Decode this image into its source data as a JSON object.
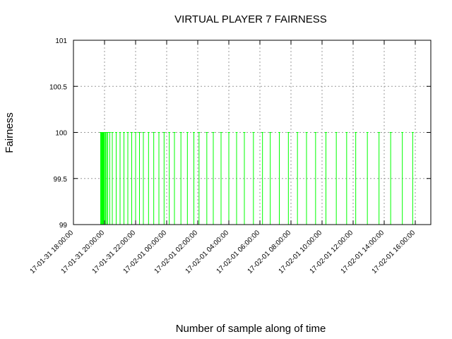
{
  "chart_data": {
    "type": "bar",
    "title": "VIRTUAL PLAYER 7 FAIRNESS",
    "xlabel": "Number of sample along of time",
    "ylabel": "Fairness",
    "ylim": [
      99,
      101
    ],
    "xlim": [
      "17-01-31 18:00:00",
      "17-02-01 17:00:00"
    ],
    "yticks": [
      "99",
      "99.5",
      "100",
      "100.5",
      "101"
    ],
    "xticks": [
      "17-01-31 18:00:00",
      "17-01-31 20:00:00",
      "17-01-31 22:00:00",
      "17-02-01 00:00:00",
      "17-02-01 02:00:00",
      "17-02-01 04:00:00",
      "17-02-01 06:00:00",
      "17-02-01 08:00:00",
      "17-02-01 10:00:00",
      "17-02-01 12:00:00",
      "17-02-01 14:00:00",
      "17-02-01 16:00:00"
    ],
    "grid": true,
    "legend": "none",
    "color": "#00ff00",
    "series": [
      {
        "x": [
          "17-01-31 19:45:00",
          "17-01-31 19:46:00",
          "17-01-31 19:47:00",
          "17-01-31 19:48:00",
          "17-01-31 19:49:00",
          "17-01-31 19:50:00",
          "17-01-31 19:51:00",
          "17-01-31 19:52:00",
          "17-01-31 19:53:00",
          "17-01-31 19:54:00",
          "17-01-31 19:55:00",
          "17-01-31 19:56:00",
          "17-01-31 19:58:00",
          "17-01-31 20:00:00",
          "17-01-31 20:04:00",
          "17-01-31 20:08:00",
          "17-01-31 20:12:00",
          "17-01-31 20:20:00",
          "17-01-31 20:30:00",
          "17-01-31 20:45:00",
          "17-01-31 21:00:00",
          "17-01-31 21:15:00",
          "17-01-31 21:30:00",
          "17-01-31 21:45:00",
          "17-01-31 22:00:00",
          "17-01-31 22:15:00",
          "17-01-31 22:30:00",
          "17-01-31 22:50:00",
          "17-01-31 23:10:00",
          "17-01-31 23:30:00",
          "17-01-31 23:50:00",
          "17-02-01 00:10:00",
          "17-02-01 00:30:00",
          "17-02-01 00:55:00",
          "17-02-01 01:20:00",
          "17-02-01 01:45:00",
          "17-02-01 02:05:00",
          "17-02-01 02:35:00",
          "17-02-01 03:00:00",
          "17-02-01 03:30:00",
          "17-02-01 04:00:00",
          "17-02-01 04:30:00",
          "17-02-01 05:00:00",
          "17-02-01 05:35:00",
          "17-02-01 06:10:00",
          "17-02-01 06:40:00",
          "17-02-01 07:15:00",
          "17-02-01 07:50:00",
          "17-02-01 08:25:00",
          "17-02-01 09:00:00",
          "17-02-01 09:35:00",
          "17-02-01 10:15:00",
          "17-02-01 10:55:00",
          "17-02-01 11:35:00",
          "17-02-01 12:10:00",
          "17-02-01 12:55:00",
          "17-02-01 13:40:00",
          "17-02-01 14:25:00",
          "17-02-01 15:10:00",
          "17-02-01 15:50:00"
        ],
        "values": [
          100,
          100,
          100,
          100,
          100,
          100,
          100,
          100,
          100,
          100,
          100,
          100,
          100,
          100,
          100,
          100,
          100,
          100,
          100,
          100,
          100,
          100,
          100,
          100,
          100,
          100,
          100,
          100,
          100,
          100,
          100,
          100,
          100,
          100,
          100,
          100,
          100,
          100,
          100,
          100,
          100,
          100,
          100,
          100,
          100,
          100,
          100,
          100,
          100,
          100,
          100,
          100,
          100,
          100,
          100,
          100,
          100,
          100,
          100,
          100
        ]
      }
    ]
  }
}
